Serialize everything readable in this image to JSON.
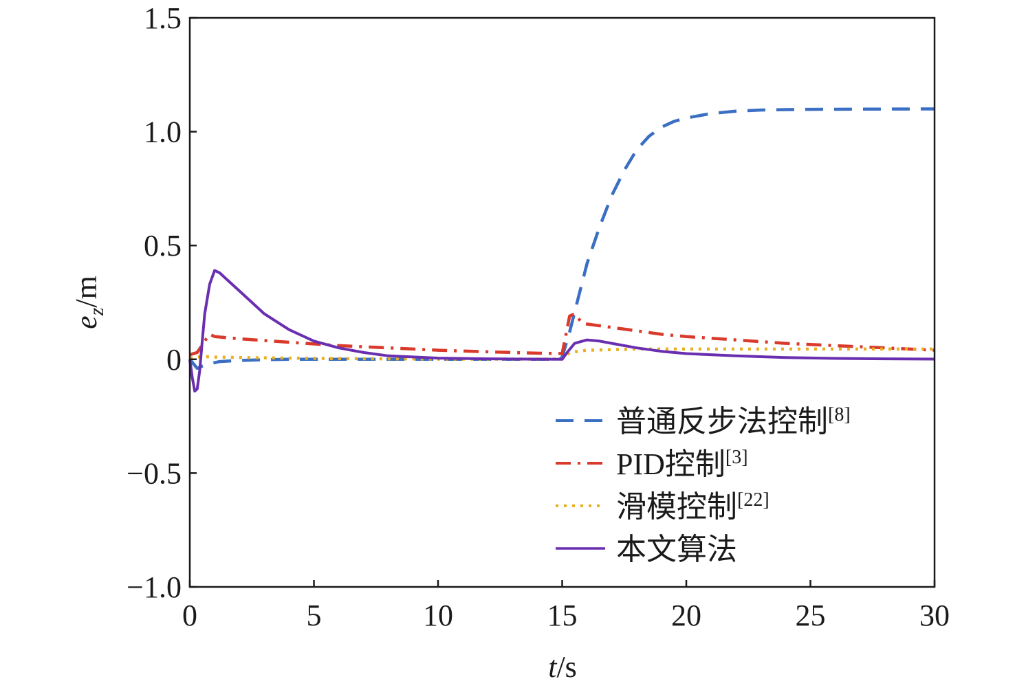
{
  "chart_data": {
    "type": "line",
    "xlabel": {
      "var": "t",
      "unit": "/s"
    },
    "ylabel": {
      "var": "e",
      "sub": "z",
      "unit": "/m"
    },
    "xlim": [
      0,
      30
    ],
    "ylim": [
      -1.0,
      1.5
    ],
    "xticks": [
      0,
      5,
      10,
      15,
      20,
      25,
      30
    ],
    "xtick_labels": [
      "0",
      "5",
      "10",
      "15",
      "20",
      "25",
      "30"
    ],
    "yticks": [
      -1.0,
      -0.5,
      0,
      0.5,
      1.0,
      1.5
    ],
    "ytick_labels": [
      "−1.0",
      "−0.5",
      "0",
      "0.5",
      "1.0",
      "1.5"
    ],
    "grid": false,
    "legend_position": "lower-right",
    "series": [
      {
        "name": "普通反步法控制",
        "ref": "[8]",
        "color": "#3a6fc4",
        "style": "dashed",
        "x": [
          0,
          0.15,
          0.3,
          0.5,
          0.8,
          1.2,
          2,
          3,
          4,
          5,
          7,
          10,
          14.9,
          15.0,
          15.3,
          15.6,
          16,
          16.5,
          17,
          17.5,
          18,
          18.5,
          19,
          19.5,
          20,
          21,
          22,
          23,
          24,
          25,
          27,
          30
        ],
        "y": [
          0,
          -0.02,
          -0.04,
          -0.03,
          -0.02,
          -0.01,
          -0.005,
          -0.002,
          0,
          0,
          0,
          0,
          0,
          0.01,
          0.12,
          0.25,
          0.42,
          0.58,
          0.72,
          0.83,
          0.92,
          0.98,
          1.02,
          1.045,
          1.06,
          1.08,
          1.09,
          1.095,
          1.097,
          1.098,
          1.099,
          1.1
        ]
      },
      {
        "name": "PID控制",
        "ref": "[3]",
        "color": "#d93a2b",
        "style": "dashdot",
        "x": [
          0,
          0.3,
          0.6,
          0.8,
          1,
          2,
          4,
          6,
          8,
          10,
          12,
          14,
          15,
          15.3,
          15.5,
          15.8,
          16,
          17,
          18,
          19,
          20,
          22,
          24,
          26,
          28,
          30
        ],
        "y": [
          0.02,
          0.03,
          0.08,
          0.11,
          0.1,
          0.09,
          0.075,
          0.06,
          0.05,
          0.04,
          0.033,
          0.027,
          0.025,
          0.19,
          0.2,
          0.16,
          0.155,
          0.14,
          0.125,
          0.11,
          0.1,
          0.085,
          0.07,
          0.06,
          0.05,
          0.04
        ]
      },
      {
        "name": "滑模控制",
        "ref": "[22]",
        "color": "#e8b020",
        "style": "dotted",
        "x": [
          0,
          0.3,
          0.6,
          1,
          2,
          4,
          6,
          8,
          10,
          12,
          14,
          15,
          15.3,
          16,
          18,
          20,
          24,
          27,
          30
        ],
        "y": [
          0.005,
          0.01,
          0.012,
          0.01,
          0.008,
          0.005,
          0.003,
          0.002,
          0.001,
          0.001,
          0.001,
          0.001,
          0.03,
          0.04,
          0.045,
          0.045,
          0.045,
          0.045,
          0.045
        ]
      },
      {
        "name": "本文算法",
        "ref": "",
        "color": "#6a2fb0",
        "style": "solid",
        "x": [
          0,
          0.1,
          0.2,
          0.3,
          0.4,
          0.5,
          0.6,
          0.8,
          1.0,
          1.2,
          1.5,
          2,
          2.5,
          3,
          4,
          5,
          6,
          7,
          8,
          10,
          12,
          15,
          15.2,
          15.5,
          16,
          16.5,
          17,
          18,
          19,
          20,
          22,
          24,
          26,
          28,
          30
        ],
        "y": [
          0,
          -0.08,
          -0.14,
          -0.13,
          -0.05,
          0.08,
          0.2,
          0.33,
          0.39,
          0.38,
          0.35,
          0.3,
          0.25,
          0.2,
          0.13,
          0.08,
          0.05,
          0.03,
          0.015,
          0.005,
          0.002,
          0.0,
          0.03,
          0.07,
          0.085,
          0.08,
          0.07,
          0.05,
          0.035,
          0.025,
          0.015,
          0.008,
          0.004,
          0.002,
          0.001
        ]
      }
    ]
  }
}
